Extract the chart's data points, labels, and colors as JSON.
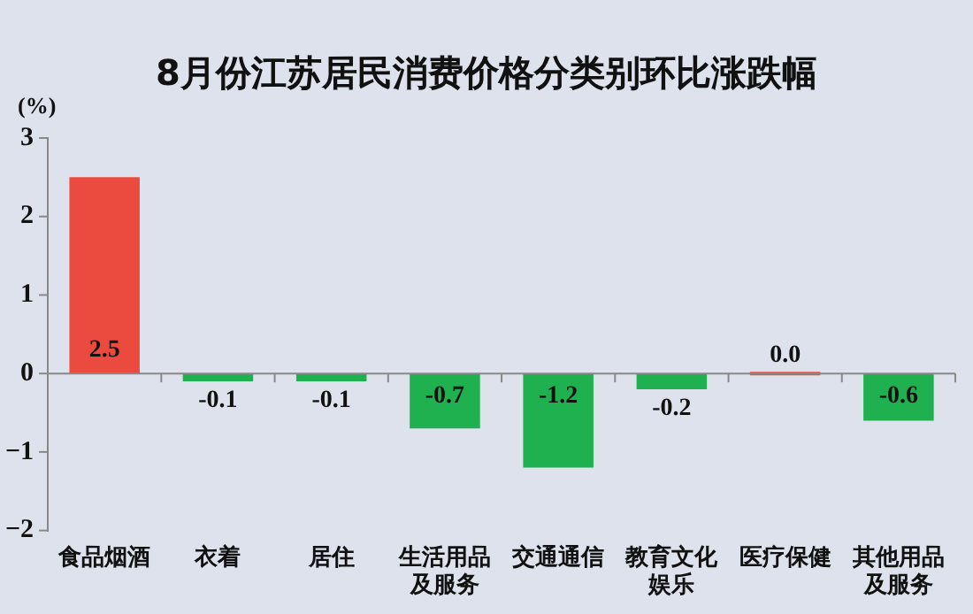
{
  "chart_data": {
    "type": "bar",
    "title": "8月份江苏居民消费价格分类别环比涨跌幅",
    "ylabel": "(%)",
    "categories": [
      "食品烟酒",
      "衣着",
      "居住",
      "生活用品及服务",
      "交通通信",
      "教育文化娱乐",
      "医疗保健",
      "其他用品及服务"
    ],
    "values": [
      2.5,
      -0.1,
      -0.1,
      -0.7,
      -1.2,
      -0.2,
      0.0,
      -0.6
    ],
    "colors": [
      "#eb4b3f",
      "#1fb14f",
      "#1fb14f",
      "#1fb14f",
      "#1fb14f",
      "#1fb14f",
      "#eb4b3f",
      "#1fb14f"
    ],
    "value_labels": [
      "2.5",
      "-0.1",
      "-0.1",
      "-0.7",
      "-1.2",
      "-0.2",
      "0.0",
      "-0.6"
    ],
    "ylim": [
      -2,
      3
    ],
    "yticks": [
      -2,
      -1,
      0,
      1,
      2,
      3
    ],
    "ref_lines": [
      {
        "axis": "y",
        "value": 0,
        "color": "#888888"
      }
    ],
    "grid": false,
    "legend": false
  }
}
